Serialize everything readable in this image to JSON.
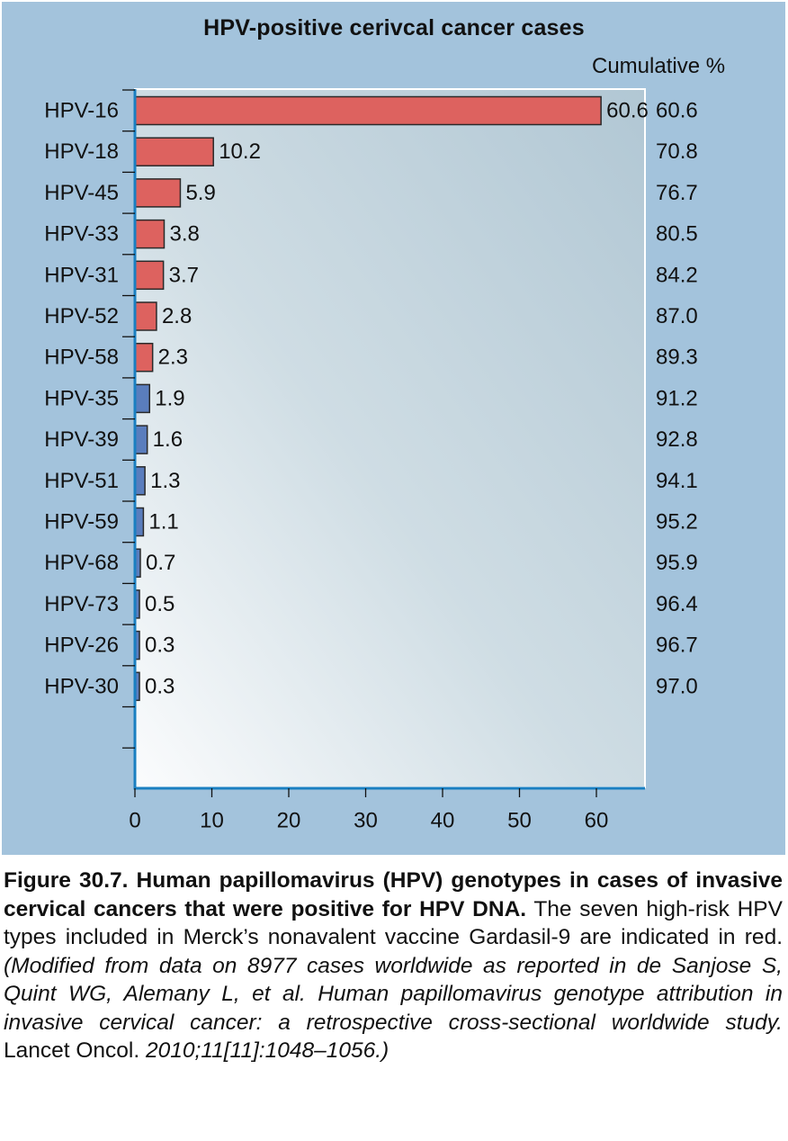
{
  "chart_data": {
    "type": "bar",
    "orientation": "horizontal",
    "title": "HPV-positive cerivcal cancer cases",
    "xlabel": "",
    "ylabel": "",
    "secondary_column_header": "Cumulative %",
    "xlim": [
      0,
      66
    ],
    "xticks": [
      0,
      10,
      20,
      30,
      40,
      50,
      60
    ],
    "categories": [
      "HPV-16",
      "HPV-18",
      "HPV-45",
      "HPV-33",
      "HPV-31",
      "HPV-52",
      "HPV-58",
      "HPV-35",
      "HPV-39",
      "HPV-51",
      "HPV-59",
      "HPV-68",
      "HPV-73",
      "HPV-26",
      "HPV-30"
    ],
    "values": [
      60.6,
      10.2,
      5.9,
      3.8,
      3.7,
      2.8,
      2.3,
      1.9,
      1.6,
      1.3,
      1.1,
      0.7,
      0.5,
      0.3,
      0.3
    ],
    "value_labels": [
      "60.6",
      "10.2",
      "5.9",
      "3.8",
      "3.7",
      "2.8",
      "2.3",
      "1.9",
      "1.6",
      "1.3",
      "1.1",
      "0.7",
      "0.5",
      "0.3",
      "0.3"
    ],
    "cumulative": [
      "60.6",
      "70.8",
      "76.7",
      "80.5",
      "84.2",
      "87.0",
      "89.3",
      "91.2",
      "92.8",
      "94.1",
      "95.2",
      "95.9",
      "96.4",
      "96.7",
      "97.0"
    ],
    "bar_colors": [
      "#dd625f",
      "#dd625f",
      "#dd625f",
      "#dd625f",
      "#dd625f",
      "#dd625f",
      "#dd625f",
      "#5a7dbd",
      "#5a7dbd",
      "#5a7dbd",
      "#5a7dbd",
      "#5a7dbd",
      "#5a7dbd",
      "#5a7dbd",
      "#5a7dbd"
    ],
    "grid": false,
    "legend": "none"
  },
  "colors": {
    "panel_background": "#a3c3dc",
    "axis": "#1a7fc1",
    "high_risk_bar": "#dd625f",
    "other_bar": "#5a7dbd"
  },
  "caption": {
    "bold": "Figure 30.7. Human papillomavirus (HPV) genotypes in cases of invasive cervical cancers that were positive for HPV DNA.",
    "normal": " The seven high-risk HPV types included in Merck’s nonavalent vaccine Gardasil-9 are indicated in red. ",
    "italic_1": "(Modified from data on 8977 cases worldwide as reported in de Sanjose S, Quint WG, Alemany L, et al. Human papillomavirus genotype attribution in invasive cervical cancer: a retrospective cross-sectional worldwide study.",
    "journal": " Lancet Oncol. ",
    "italic_2": "2010;11[11]:1048–1056.)"
  }
}
